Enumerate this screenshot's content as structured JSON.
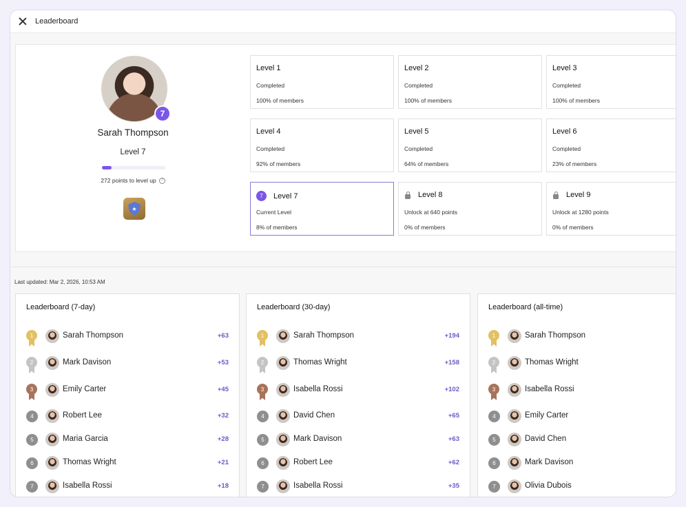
{
  "header": {
    "title": "Leaderboard"
  },
  "profile": {
    "name": "Sarah Thompson",
    "level_badge": "7",
    "level_label": "Level 7",
    "progress_fraction": 0.15,
    "points_text": "272 points to level up"
  },
  "levels": [
    {
      "title": "Level 1",
      "status": "Completed",
      "members": "100% of members",
      "state": "completed"
    },
    {
      "title": "Level 2",
      "status": "Completed",
      "members": "100% of members",
      "state": "completed"
    },
    {
      "title": "Level 3",
      "status": "Completed",
      "members": "100% of members",
      "state": "completed"
    },
    {
      "title": "Level 4",
      "status": "Completed",
      "members": "92% of members",
      "state": "completed"
    },
    {
      "title": "Level 5",
      "status": "Completed",
      "members": "64% of members",
      "state": "completed"
    },
    {
      "title": "Level 6",
      "status": "Completed",
      "members": "23% of members",
      "state": "completed"
    },
    {
      "title": "Level 7",
      "badge": "7",
      "status": "Current Level",
      "members": "8% of members",
      "state": "current"
    },
    {
      "title": "Level 8",
      "status": "Unlock at 640 points",
      "members": "0% of members",
      "state": "locked"
    },
    {
      "title": "Level 9",
      "status": "Unlock at 1280 points",
      "members": "0% of members",
      "state": "locked"
    }
  ],
  "last_updated": "Last updated: Mar 2, 2026, 10:53 AM",
  "leaderboards": [
    {
      "title": "Leaderboard (7-day)",
      "rows": [
        {
          "rank": "1",
          "name": "Sarah Thompson",
          "score": "+63"
        },
        {
          "rank": "2",
          "name": "Mark Davison",
          "score": "+53"
        },
        {
          "rank": "3",
          "name": "Emily Carter",
          "score": "+45"
        },
        {
          "rank": "4",
          "name": "Robert Lee",
          "score": "+32"
        },
        {
          "rank": "5",
          "name": "Maria Garcia",
          "score": "+28"
        },
        {
          "rank": "6",
          "name": "Thomas Wright",
          "score": "+21"
        },
        {
          "rank": "7",
          "name": "Isabella Rossi",
          "score": "+18"
        }
      ]
    },
    {
      "title": "Leaderboard (30-day)",
      "rows": [
        {
          "rank": "1",
          "name": "Sarah Thompson",
          "score": "+194"
        },
        {
          "rank": "2",
          "name": "Thomas Wright",
          "score": "+158"
        },
        {
          "rank": "3",
          "name": "Isabella Rossi",
          "score": "+102"
        },
        {
          "rank": "4",
          "name": "David Chen",
          "score": "+65"
        },
        {
          "rank": "5",
          "name": "Mark Davison",
          "score": "+63"
        },
        {
          "rank": "6",
          "name": "Robert Lee",
          "score": "+62"
        },
        {
          "rank": "7",
          "name": "Isabella Rossi",
          "score": "+35"
        }
      ]
    },
    {
      "title": "Leaderboard (all-time)",
      "rows": [
        {
          "rank": "1",
          "name": "Sarah Thompson",
          "score": ""
        },
        {
          "rank": "2",
          "name": "Thomas Wright",
          "score": ""
        },
        {
          "rank": "3",
          "name": "Isabella Rossi",
          "score": ""
        },
        {
          "rank": "4",
          "name": "Emily Carter",
          "score": ""
        },
        {
          "rank": "5",
          "name": "David Chen",
          "score": ""
        },
        {
          "rank": "6",
          "name": "Mark Davison",
          "score": ""
        },
        {
          "rank": "7",
          "name": "Olivia Dubois",
          "score": ""
        }
      ]
    }
  ]
}
